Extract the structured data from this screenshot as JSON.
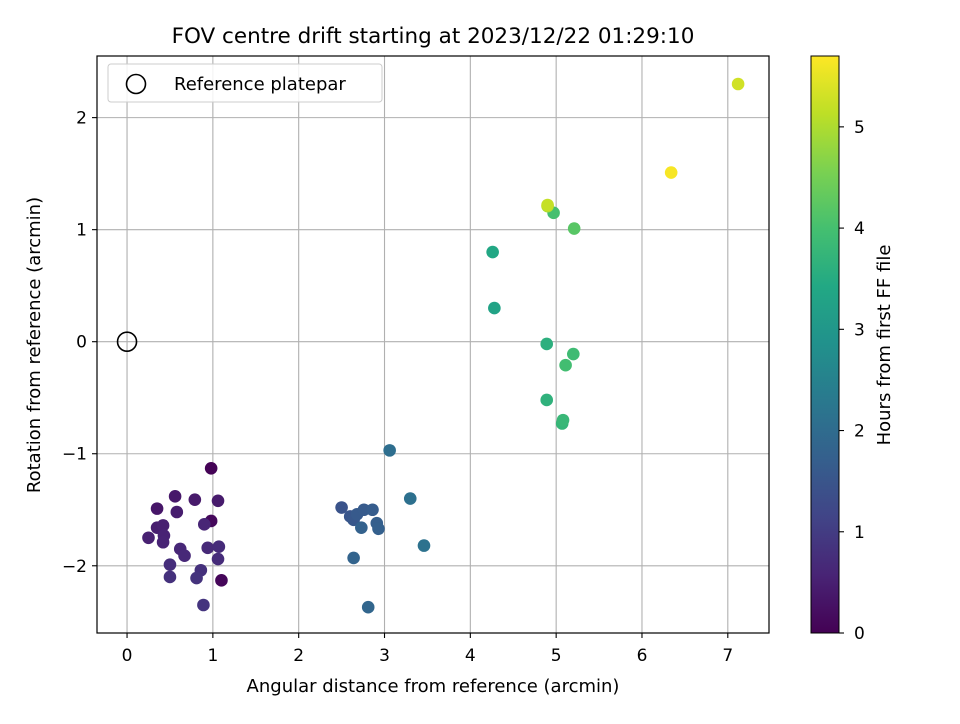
{
  "chart_data": {
    "type": "scatter",
    "title": "FOV centre drift starting at 2023/12/22 01:29:10",
    "xlabel": "Angular distance from reference (arcmin)",
    "ylabel": "Rotation from reference (arcmin)",
    "xlim": [
      -0.35,
      7.48
    ],
    "ylim": [
      -2.6,
      2.55
    ],
    "xticks": [
      0,
      1,
      2,
      3,
      4,
      5,
      6,
      7
    ],
    "yticks": [
      -2,
      -1,
      0,
      1,
      2
    ],
    "grid": true,
    "legend_position": "upper-left",
    "reference": {
      "label": "Reference platepar",
      "x": 0,
      "y": 0,
      "marker": "open-circle",
      "color": "#000000"
    },
    "colorbar": {
      "label": "Hours from first FF file",
      "min": 0,
      "max": 5.7,
      "ticks": [
        0,
        1,
        2,
        3,
        4,
        5
      ],
      "colormap": "viridis"
    },
    "points": [
      {
        "x": 0.98,
        "y": -1.13,
        "hours": 0.03
      },
      {
        "x": 1.1,
        "y": -2.13,
        "hours": 0.08
      },
      {
        "x": 0.98,
        "y": -1.6,
        "hours": 0.12
      },
      {
        "x": 0.35,
        "y": -1.49,
        "hours": 0.35
      },
      {
        "x": 0.56,
        "y": -1.38,
        "hours": 0.38
      },
      {
        "x": 0.79,
        "y": -1.41,
        "hours": 0.4
      },
      {
        "x": 1.06,
        "y": -1.42,
        "hours": 0.42
      },
      {
        "x": 0.58,
        "y": -1.52,
        "hours": 0.45
      },
      {
        "x": 0.35,
        "y": -1.66,
        "hours": 0.47
      },
      {
        "x": 0.42,
        "y": -1.64,
        "hours": 0.5
      },
      {
        "x": 0.25,
        "y": -1.75,
        "hours": 0.52
      },
      {
        "x": 0.43,
        "y": -1.73,
        "hours": 0.55
      },
      {
        "x": 0.42,
        "y": -1.79,
        "hours": 0.57
      },
      {
        "x": 0.9,
        "y": -1.63,
        "hours": 0.6
      },
      {
        "x": 0.62,
        "y": -1.85,
        "hours": 0.62
      },
      {
        "x": 0.67,
        "y": -1.91,
        "hours": 0.65
      },
      {
        "x": 0.94,
        "y": -1.84,
        "hours": 0.67
      },
      {
        "x": 1.07,
        "y": -1.83,
        "hours": 0.7
      },
      {
        "x": 1.06,
        "y": -1.94,
        "hours": 0.72
      },
      {
        "x": 0.5,
        "y": -1.99,
        "hours": 0.75
      },
      {
        "x": 0.86,
        "y": -2.04,
        "hours": 0.78
      },
      {
        "x": 0.5,
        "y": -2.1,
        "hours": 0.8
      },
      {
        "x": 0.81,
        "y": -2.11,
        "hours": 0.83
      },
      {
        "x": 0.89,
        "y": -2.35,
        "hours": 0.86
      },
      {
        "x": 2.5,
        "y": -1.48,
        "hours": 1.45
      },
      {
        "x": 2.6,
        "y": -1.56,
        "hours": 1.5
      },
      {
        "x": 2.64,
        "y": -1.59,
        "hours": 1.55
      },
      {
        "x": 2.68,
        "y": -1.54,
        "hours": 1.6
      },
      {
        "x": 2.76,
        "y": -1.5,
        "hours": 1.63
      },
      {
        "x": 2.86,
        "y": -1.5,
        "hours": 1.67
      },
      {
        "x": 2.91,
        "y": -1.62,
        "hours": 1.7
      },
      {
        "x": 2.93,
        "y": -1.67,
        "hours": 1.74
      },
      {
        "x": 2.73,
        "y": -1.66,
        "hours": 1.78
      },
      {
        "x": 2.64,
        "y": -1.93,
        "hours": 1.82
      },
      {
        "x": 2.81,
        "y": -2.37,
        "hours": 1.86
      },
      {
        "x": 3.06,
        "y": -0.97,
        "hours": 2.05
      },
      {
        "x": 3.3,
        "y": -1.4,
        "hours": 2.1
      },
      {
        "x": 3.46,
        "y": -1.82,
        "hours": 2.15
      },
      {
        "x": 4.28,
        "y": 0.3,
        "hours": 3.3
      },
      {
        "x": 4.26,
        "y": 0.8,
        "hours": 3.4
      },
      {
        "x": 4.89,
        "y": -0.02,
        "hours": 3.6
      },
      {
        "x": 4.89,
        "y": -0.52,
        "hours": 3.65
      },
      {
        "x": 5.07,
        "y": -0.73,
        "hours": 3.75
      },
      {
        "x": 5.08,
        "y": -0.7,
        "hours": 3.8
      },
      {
        "x": 5.2,
        "y": -0.11,
        "hours": 3.9
      },
      {
        "x": 5.11,
        "y": -0.21,
        "hours": 3.95
      },
      {
        "x": 4.97,
        "y": 1.15,
        "hours": 4.0
      },
      {
        "x": 5.21,
        "y": 1.01,
        "hours": 4.2
      },
      {
        "x": 4.9,
        "y": 1.21,
        "hours": 5.0
      },
      {
        "x": 4.9,
        "y": 1.22,
        "hours": 5.2
      },
      {
        "x": 6.34,
        "y": 1.51,
        "hours": 5.65
      },
      {
        "x": 7.12,
        "y": 2.3,
        "hours": 5.3
      }
    ]
  }
}
